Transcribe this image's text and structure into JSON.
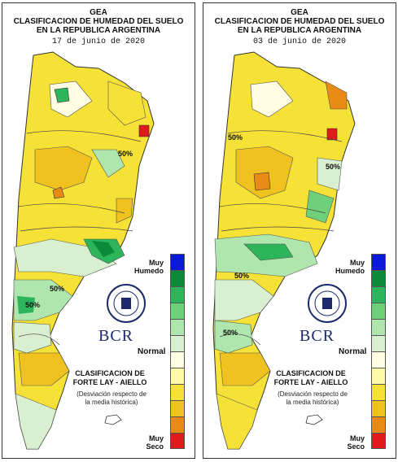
{
  "panels": [
    {
      "title1": "GEA",
      "title2": "CLASIFICACION DE HUMEDAD DEL SUELO",
      "title3": "EN LA REPUBLICA ARGENTINA",
      "date": "17 de junio de 2020",
      "iso_labels": [
        "50%",
        "50%",
        "50%"
      ]
    },
    {
      "title1": "GEA",
      "title2": "CLASIFICACION DE HUMEDAD DEL SUELO",
      "title3": "EN LA REPUBLICA ARGENTINA",
      "date": "03 de junio de 2020",
      "iso_labels": [
        "50%",
        "50%",
        "50%",
        "50%"
      ]
    }
  ],
  "legend": {
    "muy_humedo": "Muy\nHumedo",
    "normal": "Normal",
    "muy_seco": "Muy\nSeco",
    "clasif1": "CLASIFICACION DE",
    "clasif2": "FORTE LAY - AIELLO",
    "desviacion": "(Desviación respecto de\nla media histórica)",
    "bcr": "BCR",
    "colors": [
      "#0a18d8",
      "#0b8a3a",
      "#2db55c",
      "#6ed17a",
      "#aee6ad",
      "#d8f0d0",
      "#fffde2",
      "#fff9a8",
      "#f6e236",
      "#f0c21f",
      "#e98a14",
      "#e01b1b"
    ]
  },
  "map_colors": {
    "normal": "#fffde2",
    "dry1": "#fff9a8",
    "dry2": "#f6e236",
    "dry3": "#f0c21f",
    "dry4": "#e98a14",
    "dry5": "#e01b1b",
    "wet1": "#d8f0d0",
    "wet2": "#aee6ad",
    "wet3": "#6ed17a",
    "wet4": "#2db55c",
    "wet5": "#0b8a3a"
  }
}
